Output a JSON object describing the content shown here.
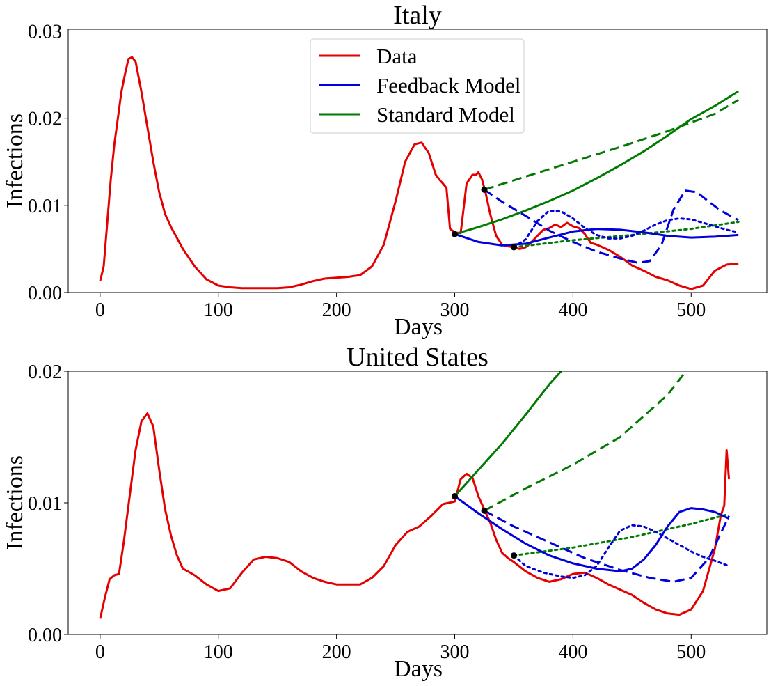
{
  "chart_data": [
    {
      "type": "line",
      "title": "Italy",
      "xlabel": "Days",
      "ylabel": "Infections",
      "xlim": [
        -27,
        564
      ],
      "ylim": [
        0,
        0.0302
      ],
      "xticks": [
        0,
        100,
        200,
        300,
        400,
        500
      ],
      "xtick_labels": [
        "0",
        "100",
        "200",
        "300",
        "400",
        "500"
      ],
      "yticks": [
        0,
        0.01,
        0.02,
        0.03
      ],
      "ytick_labels": [
        "0.00",
        "0.01",
        "0.02",
        "0.03"
      ],
      "legend": {
        "placement": "upper-center",
        "entries": [
          {
            "label": "Data",
            "color": "#e50000"
          },
          {
            "label": "Feedback Model",
            "color": "#0000dd"
          },
          {
            "label": "Standard Model",
            "color": "#007a00"
          }
        ]
      },
      "series": [
        {
          "name": "Data",
          "color": "#e50000",
          "style": "solid",
          "x": [
            0,
            3,
            6,
            9,
            12,
            15,
            18,
            21,
            24,
            27,
            30,
            35,
            40,
            45,
            50,
            55,
            60,
            70,
            80,
            90,
            100,
            110,
            120,
            130,
            140,
            150,
            160,
            170,
            180,
            190,
            200,
            210,
            220,
            230,
            240,
            250,
            258,
            266,
            272,
            278,
            284,
            288,
            290,
            293,
            296,
            300,
            305,
            310,
            315,
            318,
            320,
            323,
            326,
            330,
            335,
            340,
            345,
            350,
            355,
            360,
            365,
            370,
            375,
            380,
            385,
            390,
            395,
            400,
            405,
            410,
            415,
            420,
            430,
            440,
            450,
            460,
            470,
            480,
            490,
            500,
            510,
            520,
            530,
            540
          ],
          "y": [
            0.0013,
            0.003,
            0.008,
            0.013,
            0.017,
            0.02,
            0.023,
            0.025,
            0.0268,
            0.027,
            0.0265,
            0.023,
            0.019,
            0.015,
            0.0115,
            0.009,
            0.0075,
            0.005,
            0.003,
            0.0015,
            0.0008,
            0.0006,
            0.0005,
            0.0005,
            0.0005,
            0.0005,
            0.0006,
            0.0009,
            0.0013,
            0.0016,
            0.0017,
            0.0018,
            0.002,
            0.003,
            0.0055,
            0.0105,
            0.015,
            0.017,
            0.0172,
            0.016,
            0.0135,
            0.0128,
            0.0125,
            0.012,
            0.0073,
            0.0069,
            0.0068,
            0.0125,
            0.0135,
            0.0135,
            0.0138,
            0.013,
            0.0115,
            0.009,
            0.0065,
            0.0055,
            0.0053,
            0.0052,
            0.005,
            0.0052,
            0.0058,
            0.0065,
            0.0072,
            0.0074,
            0.0078,
            0.0075,
            0.008,
            0.0076,
            0.0074,
            0.0067,
            0.0057,
            0.0055,
            0.0049,
            0.0041,
            0.0031,
            0.0025,
            0.0018,
            0.0014,
            0.0008,
            0.0004,
            0.0008,
            0.0025,
            0.0032,
            0.0033
          ]
        },
        {
          "name": "",
          "color": "#007a00",
          "style": "solid",
          "x": [
            300,
            320,
            340,
            360,
            380,
            400,
            420,
            440,
            460,
            480,
            500,
            520,
            540
          ],
          "y": [
            0.0067,
            0.0075,
            0.0084,
            0.0094,
            0.0105,
            0.0117,
            0.0131,
            0.0146,
            0.0162,
            0.018,
            0.0199,
            0.0214,
            0.0231
          ]
        },
        {
          "name": "",
          "color": "#007a00",
          "style": "dashed",
          "x": [
            325,
            360,
            400,
            440,
            480,
            520,
            540
          ],
          "y": [
            0.0118,
            0.0133,
            0.015,
            0.0167,
            0.0185,
            0.0205,
            0.0221
          ]
        },
        {
          "name": "",
          "color": "#007a00",
          "style": "dotted",
          "x": [
            350,
            400,
            450,
            500,
            540
          ],
          "y": [
            0.0052,
            0.006,
            0.0066,
            0.0073,
            0.0081
          ]
        },
        {
          "name": "",
          "color": "#0000dd",
          "style": "solid",
          "x": [
            300,
            320,
            340,
            360,
            380,
            400,
            420,
            440,
            460,
            480,
            500,
            520,
            540
          ],
          "y": [
            0.0067,
            0.0058,
            0.0054,
            0.0056,
            0.0063,
            0.007,
            0.0073,
            0.0072,
            0.0069,
            0.0065,
            0.0063,
            0.0064,
            0.0066
          ]
        },
        {
          "name": "",
          "color": "#0000dd",
          "style": "dashed",
          "x": [
            325,
            340,
            360,
            380,
            400,
            420,
            440,
            455,
            465,
            475,
            485,
            495,
            505,
            515,
            525,
            540
          ],
          "y": [
            0.0118,
            0.0104,
            0.0088,
            0.0071,
            0.0058,
            0.0047,
            0.0039,
            0.0034,
            0.0036,
            0.0055,
            0.0095,
            0.0117,
            0.0115,
            0.0104,
            0.0094,
            0.0083
          ]
        },
        {
          "name": "",
          "color": "#0000dd",
          "style": "dotted",
          "x": [
            350,
            360,
            370,
            380,
            390,
            400,
            410,
            420,
            430,
            440,
            450,
            460,
            470,
            480,
            490,
            500,
            510,
            520,
            530,
            540
          ],
          "y": [
            0.0052,
            0.0061,
            0.0082,
            0.0094,
            0.0093,
            0.0085,
            0.0074,
            0.0066,
            0.0062,
            0.0062,
            0.0065,
            0.0071,
            0.0078,
            0.0083,
            0.0085,
            0.0084,
            0.008,
            0.0076,
            0.0072,
            0.0069
          ]
        }
      ],
      "markers": {
        "color": "#000000",
        "x": [
          300,
          325,
          350
        ],
        "y": [
          0.0067,
          0.0118,
          0.0052
        ]
      }
    },
    {
      "type": "line",
      "title": "United States",
      "xlabel": "Days",
      "ylabel": "Infections",
      "xlim": [
        -27,
        564
      ],
      "ylim": [
        0,
        0.02
      ],
      "xticks": [
        0,
        100,
        200,
        300,
        400,
        500
      ],
      "xtick_labels": [
        "0",
        "100",
        "200",
        "300",
        "400",
        "500"
      ],
      "yticks": [
        0,
        0.01,
        0.02
      ],
      "ytick_labels": [
        "0.00",
        "0.01",
        "0.02"
      ],
      "series": [
        {
          "name": "Data",
          "color": "#e50000",
          "style": "solid",
          "x": [
            0,
            4,
            8,
            12,
            16,
            20,
            25,
            30,
            35,
            40,
            45,
            50,
            55,
            60,
            65,
            70,
            80,
            90,
            100,
            110,
            120,
            130,
            140,
            150,
            160,
            170,
            180,
            190,
            200,
            210,
            220,
            230,
            240,
            250,
            260,
            270,
            280,
            290,
            300,
            305,
            310,
            315,
            320,
            325,
            330,
            335,
            340,
            345,
            350,
            360,
            370,
            380,
            390,
            400,
            410,
            420,
            430,
            440,
            450,
            460,
            470,
            480,
            490,
            500,
            510,
            520,
            525,
            528,
            530,
            532
          ],
          "y": [
            0.0012,
            0.0028,
            0.0042,
            0.0045,
            0.0046,
            0.007,
            0.0105,
            0.014,
            0.0162,
            0.0168,
            0.0158,
            0.0125,
            0.0095,
            0.0075,
            0.006,
            0.005,
            0.0045,
            0.0038,
            0.0033,
            0.0035,
            0.0047,
            0.0057,
            0.0059,
            0.0058,
            0.0055,
            0.0048,
            0.0043,
            0.004,
            0.0038,
            0.0038,
            0.0038,
            0.0043,
            0.0052,
            0.0068,
            0.0078,
            0.0082,
            0.009,
            0.0099,
            0.0101,
            0.0118,
            0.0122,
            0.0119,
            0.0105,
            0.0095,
            0.0085,
            0.0072,
            0.0062,
            0.0058,
            0.0055,
            0.0048,
            0.0043,
            0.004,
            0.0042,
            0.0046,
            0.0047,
            0.0043,
            0.0038,
            0.0034,
            0.003,
            0.0024,
            0.0019,
            0.0016,
            0.0015,
            0.0019,
            0.0033,
            0.0065,
            0.009,
            0.0098,
            0.014,
            0.0118
          ]
        },
        {
          "name": "",
          "color": "#007a00",
          "style": "solid",
          "x": [
            300,
            320,
            340,
            360,
            380,
            395
          ],
          "y": [
            0.0105,
            0.0125,
            0.0145,
            0.0167,
            0.019,
            0.0205
          ]
        },
        {
          "name": "",
          "color": "#007a00",
          "style": "dashed",
          "x": [
            325,
            360,
            400,
            440,
            480,
            500
          ],
          "y": [
            0.0094,
            0.0111,
            0.0129,
            0.015,
            0.0182,
            0.0205
          ]
        },
        {
          "name": "",
          "color": "#007a00",
          "style": "dotted",
          "x": [
            350,
            400,
            450,
            500,
            530
          ],
          "y": [
            0.006,
            0.0066,
            0.0074,
            0.0084,
            0.0091
          ]
        },
        {
          "name": "",
          "color": "#0000dd",
          "style": "solid",
          "x": [
            300,
            320,
            340,
            360,
            380,
            400,
            420,
            440,
            450,
            460,
            470,
            480,
            490,
            500,
            510,
            520,
            532
          ],
          "y": [
            0.0105,
            0.0092,
            0.008,
            0.0069,
            0.006,
            0.0054,
            0.005,
            0.0048,
            0.005,
            0.0057,
            0.0068,
            0.0082,
            0.0093,
            0.0096,
            0.0095,
            0.0093,
            0.0088
          ]
        },
        {
          "name": "",
          "color": "#0000dd",
          "style": "dashed",
          "x": [
            325,
            350,
            380,
            410,
            440,
            465,
            485,
            500,
            515,
            532
          ],
          "y": [
            0.0094,
            0.0082,
            0.007,
            0.0058,
            0.0049,
            0.0043,
            0.004,
            0.0043,
            0.0058,
            0.009
          ]
        },
        {
          "name": "",
          "color": "#0000dd",
          "style": "dotted",
          "x": [
            350,
            360,
            375,
            390,
            400,
            410,
            420,
            430,
            440,
            450,
            460,
            470,
            480,
            490,
            500,
            510,
            520,
            532
          ],
          "y": [
            0.006,
            0.0052,
            0.0047,
            0.0044,
            0.0043,
            0.0045,
            0.0052,
            0.0066,
            0.0079,
            0.0083,
            0.0082,
            0.0078,
            0.0073,
            0.0068,
            0.0063,
            0.0059,
            0.0056,
            0.0052
          ]
        }
      ],
      "markers": {
        "color": "#000000",
        "x": [
          300,
          325,
          350
        ],
        "y": [
          0.0105,
          0.0094,
          0.006
        ]
      }
    }
  ]
}
